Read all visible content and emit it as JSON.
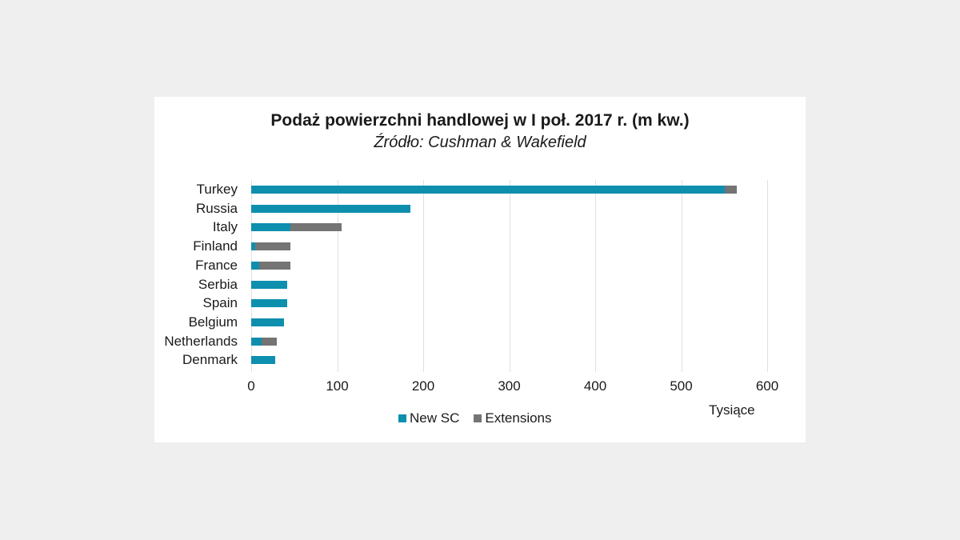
{
  "chart_data": {
    "type": "bar",
    "orientation": "horizontal",
    "stacked": true,
    "title": "Podaż powierzchni handlowej w I poł. 2017 r. (m kw.)",
    "subtitle": "Źródło: Cushman & Wakefield",
    "xlabel": "Tysiące",
    "ylabel": "",
    "xlim": [
      0,
      600
    ],
    "xticks": [
      "0",
      "100",
      "200",
      "300",
      "400",
      "500",
      "600"
    ],
    "grid": true,
    "legend_position": "bottom",
    "categories": [
      "Turkey",
      "Russia",
      "Italy",
      "Finland",
      "France",
      "Serbia",
      "Spain",
      "Belgium",
      "Netherlands",
      "Denmark"
    ],
    "series": [
      {
        "name": "New SC",
        "color": "#0e8fae",
        "values": [
          551,
          185,
          46,
          5,
          9,
          42,
          42,
          38,
          12,
          28
        ]
      },
      {
        "name": "Extensions",
        "color": "#747474",
        "values": [
          14,
          0,
          59,
          41,
          37,
          0,
          0,
          0,
          18,
          0
        ]
      }
    ]
  }
}
